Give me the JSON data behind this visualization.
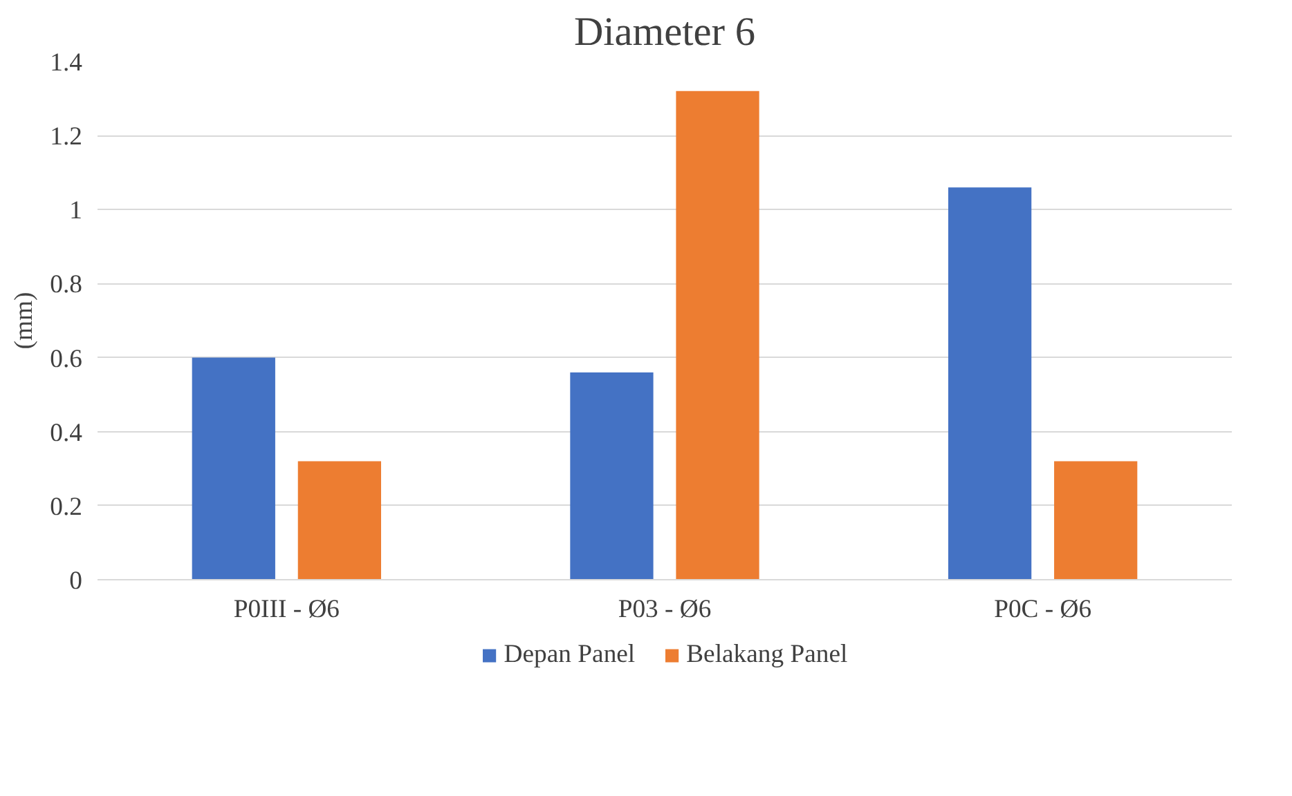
{
  "chart_data": {
    "type": "bar",
    "title": "Diameter 6",
    "ylabel": "(mm)",
    "categories": [
      "P0III - Ø6",
      "P03 - Ø6",
      "P0C - Ø6"
    ],
    "series": [
      {
        "name": "Depan Panel",
        "color": "#4472c4",
        "values": [
          0.6,
          0.56,
          1.06
        ]
      },
      {
        "name": "Belakang Panel",
        "color": "#ed7d31",
        "values": [
          0.32,
          1.32,
          0.32
        ]
      }
    ],
    "ylim": [
      0,
      1.4
    ],
    "yticks": [
      0,
      0.2,
      0.4,
      0.6,
      0.8,
      1,
      1.2,
      1.4
    ],
    "grid": "y",
    "legend": "bottom"
  }
}
